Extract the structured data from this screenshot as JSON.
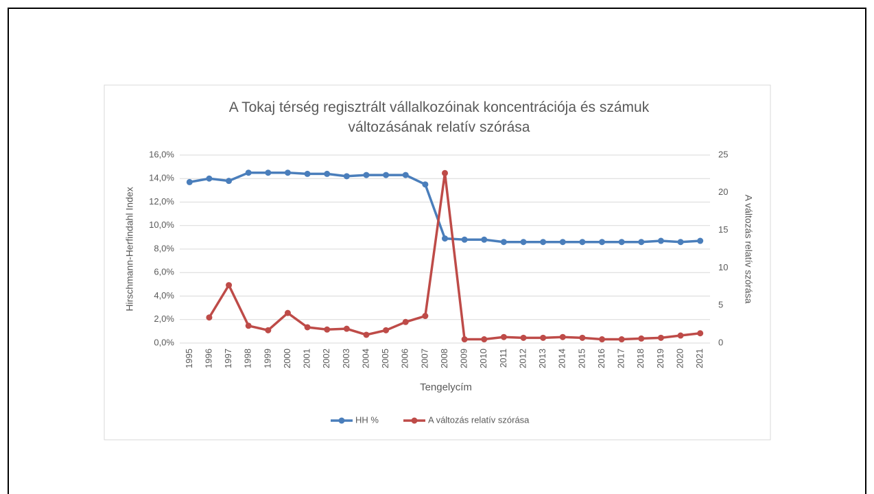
{
  "chart_data": {
    "type": "line",
    "title": "A Tokaj térség regisztrált vállalkozóinak koncentrációja és számuk változásának relatív szórása",
    "x_label": "Tengelycím",
    "y_label": "Hirschmann-Herfindahl Index",
    "y2_label": "A változás relatív szórása",
    "categories": [
      "1995",
      "1996",
      "1997",
      "1998",
      "1999",
      "2000",
      "2001",
      "2002",
      "2003",
      "2004",
      "2005",
      "2006",
      "2007",
      "2008",
      "2009",
      "2010",
      "2011",
      "2012",
      "2013",
      "2014",
      "2015",
      "2016",
      "2017",
      "2018",
      "2019",
      "2020",
      "2021"
    ],
    "series": [
      {
        "name": "HH %",
        "color": "#4a7ebb",
        "axis": "y",
        "values": [
          13.7,
          14.0,
          13.8,
          14.5,
          14.5,
          14.5,
          14.4,
          14.4,
          14.2,
          14.3,
          14.3,
          14.3,
          13.5,
          8.9,
          8.8,
          8.8,
          8.6,
          8.6,
          8.6,
          8.6,
          8.6,
          8.6,
          8.6,
          8.6,
          8.7,
          8.6,
          8.7
        ]
      },
      {
        "name": "A változás relatív szórása",
        "color": "#be4b48",
        "axis": "y2",
        "values": [
          null,
          3.4,
          7.7,
          2.3,
          1.7,
          4.0,
          2.1,
          1.8,
          1.9,
          1.1,
          1.7,
          2.8,
          3.6,
          22.6,
          0.5,
          0.5,
          0.8,
          0.7,
          0.7,
          0.8,
          0.7,
          0.5,
          0.5,
          0.6,
          0.7,
          1.0,
          1.3
        ]
      }
    ],
    "ylim": [
      0,
      16
    ],
    "yticks": [
      {
        "value": 0,
        "label": "0,0%"
      },
      {
        "value": 2,
        "label": "2,0%"
      },
      {
        "value": 4,
        "label": "4,0%"
      },
      {
        "value": 6,
        "label": "6,0%"
      },
      {
        "value": 8,
        "label": "8,0%"
      },
      {
        "value": 10,
        "label": "10,0%"
      },
      {
        "value": 12,
        "label": "12,0%"
      },
      {
        "value": 14,
        "label": "14,0%"
      },
      {
        "value": 16,
        "label": "16,0%"
      }
    ],
    "y2lim": [
      0,
      25
    ],
    "y2ticks": [
      0,
      5,
      10,
      15,
      20,
      25
    ],
    "grid": true,
    "legend": "bottom"
  }
}
